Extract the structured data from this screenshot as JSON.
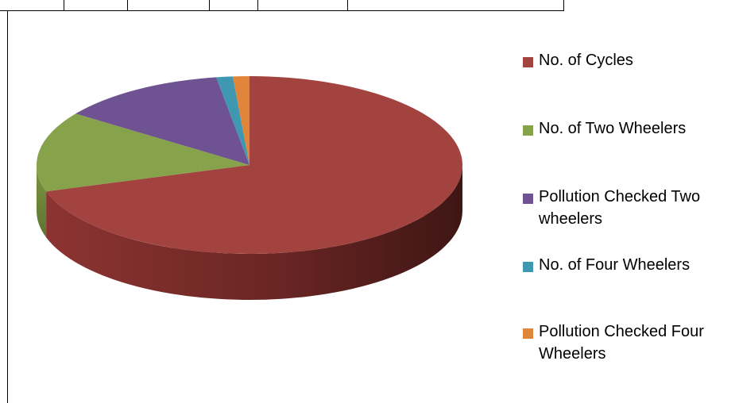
{
  "chart_data": {
    "type": "pie",
    "style": "3d",
    "title": "",
    "legend_position": "right",
    "slices": [
      {
        "label": "No. of Cycles",
        "value": 70.2,
        "color": "#a34340"
      },
      {
        "label": "No. of Two Wheelers",
        "value": 14.6,
        "color": "#86a24b"
      },
      {
        "label": "Pollution Checked Two wheelers",
        "value": 12.7,
        "color": "#6e5291"
      },
      {
        "label": "No. of Four Wheelers",
        "value": 1.25,
        "color": "#3f98b0"
      },
      {
        "label": "Pollution Checked Four Wheelers",
        "value": 1.25,
        "color": "#e0863a"
      }
    ]
  },
  "legend": {
    "items": [
      {
        "label": "No. of Cycles",
        "color": "#a34340"
      },
      {
        "label": "No. of Two Wheelers",
        "color": "#86a24b"
      },
      {
        "label": "Pollution Checked Two\nwheelers",
        "color": "#6e5291"
      },
      {
        "label": "No. of Four Wheelers",
        "color": "#3f98b0"
      },
      {
        "label": "Pollution Checked Four\nWheelers",
        "color": "#e0863a"
      }
    ]
  }
}
